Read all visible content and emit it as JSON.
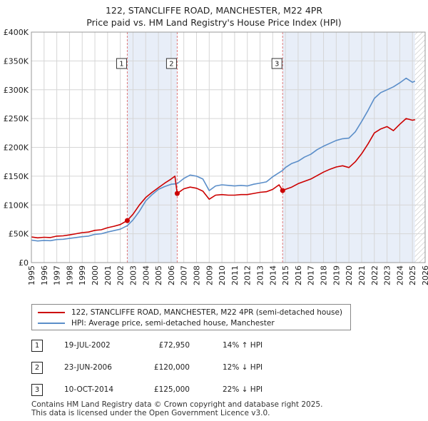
{
  "title": {
    "line1": "122, STANCLIFFE ROAD, MANCHESTER, M22 4PR",
    "line2": "Price paid vs. HM Land Registry's House Price Index (HPI)"
  },
  "colors": {
    "property": "#cc0000",
    "hpi": "#5b8ec9",
    "grid": "#d6d6d6",
    "marker_line": "#e07a7a",
    "shade": "#e8eef8",
    "hatch": "#bbbbbb"
  },
  "legend": {
    "property_label": "122, STANCLIFFE ROAD, MANCHESTER, M22 4PR (semi-detached house)",
    "hpi_label": "HPI: Average price, semi-detached house, Manchester"
  },
  "transactions": [
    {
      "num": "1",
      "date": "19-JUL-2002",
      "price": "£72,950",
      "delta": "14% ↑ HPI"
    },
    {
      "num": "2",
      "date": "23-JUN-2006",
      "price": "£120,000",
      "delta": "12% ↓ HPI"
    },
    {
      "num": "3",
      "date": "10-OCT-2014",
      "price": "£125,000",
      "delta": "22% ↓ HPI"
    }
  ],
  "footer": {
    "line1": "Contains HM Land Registry data © Crown copyright and database right 2025.",
    "line2": "This data is licensed under the Open Government Licence v3.0."
  },
  "chart_data": {
    "type": "line",
    "title": "Price paid vs. HM Land Registry's House Price Index (HPI)",
    "xlim": [
      1995,
      2026
    ],
    "ylim": [
      0,
      400000
    ],
    "ytick_values": [
      0,
      50000,
      100000,
      150000,
      200000,
      250000,
      300000,
      350000,
      400000
    ],
    "ytick_labels": [
      "£0",
      "£50K",
      "£100K",
      "£150K",
      "£200K",
      "£250K",
      "£300K",
      "£350K",
      "£400K"
    ],
    "xtick_labels": [
      "1995",
      "1996",
      "1997",
      "1998",
      "1999",
      "2000",
      "2001",
      "2002",
      "2003",
      "2004",
      "2005",
      "2006",
      "2007",
      "2008",
      "2009",
      "2010",
      "2011",
      "2012",
      "2013",
      "2014",
      "2015",
      "2016",
      "2017",
      "2018",
      "2019",
      "2020",
      "2021",
      "2022",
      "2023",
      "2024",
      "2025",
      "2026"
    ],
    "shaded_ranges": [
      [
        2002.55,
        2006.48
      ],
      [
        2014.78,
        2025.2
      ]
    ],
    "forecast_from": 2025.2,
    "sales": [
      {
        "label": "1",
        "x": 2002.55,
        "y": 72950
      },
      {
        "label": "2",
        "x": 2006.48,
        "y": 120000
      },
      {
        "label": "3",
        "x": 2014.78,
        "y": 125000
      }
    ],
    "series": [
      {
        "name": "HPI: Average price, semi-detached house, Manchester",
        "x": [
          1995.0,
          1995.5,
          1996.0,
          1996.5,
          1997.0,
          1997.5,
          1998.0,
          1998.5,
          1999.0,
          1999.5,
          2000.0,
          2000.5,
          2001.0,
          2001.5,
          2002.0,
          2002.55,
          2003.0,
          2003.5,
          2004.0,
          2004.5,
          2005.0,
          2005.5,
          2006.0,
          2006.48,
          2007.0,
          2007.5,
          2008.0,
          2008.5,
          2009.0,
          2009.5,
          2010.0,
          2010.5,
          2011.0,
          2011.5,
          2012.0,
          2012.5,
          2013.0,
          2013.5,
          2014.0,
          2014.78,
          2015.0,
          2015.5,
          2016.0,
          2016.5,
          2017.0,
          2017.5,
          2018.0,
          2018.5,
          2019.0,
          2019.5,
          2020.0,
          2020.5,
          2021.0,
          2021.5,
          2022.0,
          2022.5,
          2023.0,
          2023.5,
          2024.0,
          2024.5,
          2025.0,
          2025.2
        ],
        "values": [
          39000,
          37500,
          38500,
          38000,
          40000,
          40500,
          42000,
          43500,
          45000,
          46000,
          49000,
          50000,
          53000,
          55500,
          58000,
          64000,
          74000,
          89000,
          107000,
          118000,
          127000,
          132000,
          136000,
          137000,
          146000,
          152000,
          150000,
          145000,
          125000,
          133000,
          135000,
          134000,
          133000,
          134000,
          133000,
          136000,
          138000,
          140000,
          149000,
          160000,
          165000,
          172000,
          176000,
          183000,
          188000,
          196000,
          202000,
          207000,
          212000,
          215000,
          216000,
          227000,
          245000,
          264000,
          285000,
          295000,
          300000,
          305000,
          312000,
          320000,
          313000,
          315000
        ]
      },
      {
        "name": "122, STANCLIFFE ROAD, MANCHESTER, M22 4PR (semi-detached house)",
        "x": [
          1995.0,
          1995.5,
          1996.0,
          1996.5,
          1997.0,
          1997.5,
          1998.0,
          1998.5,
          1999.0,
          1999.5,
          2000.0,
          2000.5,
          2001.0,
          2001.5,
          2002.0,
          2002.55,
          2003.0,
          2003.5,
          2004.0,
          2004.5,
          2005.0,
          2005.5,
          2006.0,
          2006.3,
          2006.48,
          2007.0,
          2007.5,
          2008.0,
          2008.5,
          2009.0,
          2009.5,
          2010.0,
          2010.5,
          2011.0,
          2011.5,
          2012.0,
          2012.5,
          2013.0,
          2013.5,
          2014.0,
          2014.5,
          2014.78,
          2015.0,
          2015.5,
          2016.0,
          2016.5,
          2017.0,
          2017.5,
          2018.0,
          2018.5,
          2019.0,
          2019.5,
          2020.0,
          2020.5,
          2021.0,
          2021.5,
          2022.0,
          2022.5,
          2023.0,
          2023.5,
          2024.0,
          2024.5,
          2025.0,
          2025.2
        ],
        "values": [
          44500,
          43000,
          44000,
          43500,
          46000,
          46500,
          48000,
          50000,
          52000,
          53000,
          56000,
          57000,
          60500,
          63000,
          66000,
          72950,
          84000,
          100000,
          113000,
          122000,
          130000,
          138000,
          145000,
          150000,
          120000,
          128000,
          131000,
          129000,
          124000,
          110000,
          117000,
          118000,
          117000,
          117000,
          118000,
          118000,
          120000,
          122000,
          123000,
          127000,
          135000,
          125000,
          127000,
          131000,
          137000,
          141000,
          145000,
          151000,
          157000,
          162000,
          166000,
          168000,
          165000,
          175000,
          189000,
          206000,
          225000,
          232000,
          236000,
          229000,
          240000,
          250000,
          247000,
          248000
        ]
      }
    ]
  }
}
